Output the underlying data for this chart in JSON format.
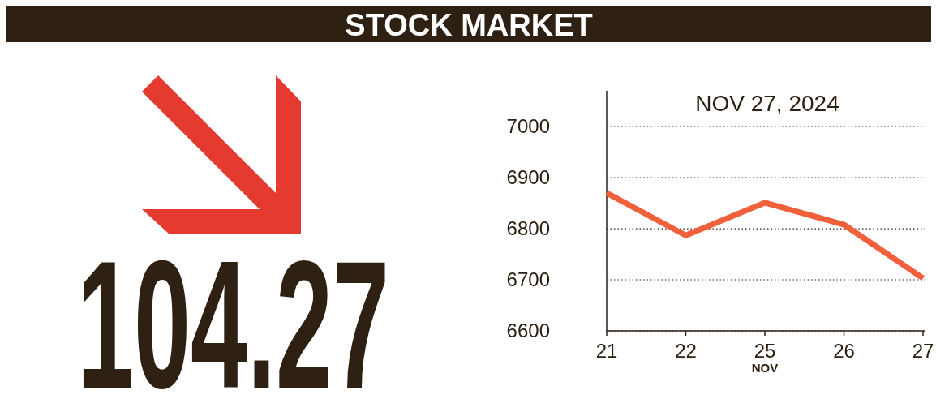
{
  "chart_data": [
    {
      "type": "other",
      "title": "STOCK MARKET",
      "annotations": [
        "104.27"
      ]
    },
    {
      "type": "line",
      "title": "NOV 27, 2024",
      "xlabel": "NOV",
      "categories": [
        "21",
        "22",
        "25",
        "26",
        "27"
      ],
      "series": [
        {
          "color": "#f0603a",
          "values": [
            6870,
            6787,
            6851,
            6808,
            6703
          ]
        }
      ],
      "ylim": [
        6600,
        7070
      ],
      "yticks": [
        6600,
        6700,
        6800,
        6900,
        7000
      ],
      "grid": "y",
      "marker": "none",
      "line_style": "solid"
    }
  ]
}
